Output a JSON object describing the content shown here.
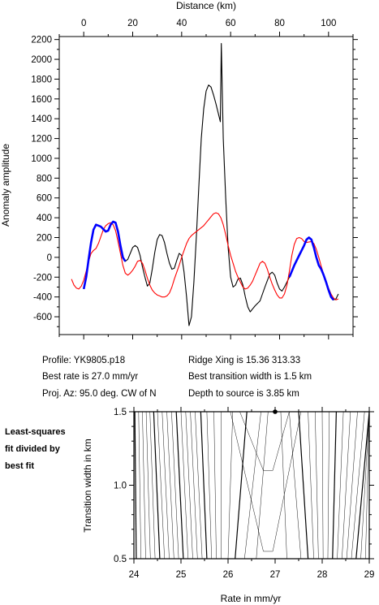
{
  "chart_data": [
    {
      "type": "line",
      "xlabel": "Distance (km)",
      "ylabel": "Anomaly amplitude",
      "xlim": [
        -10,
        110
      ],
      "ylim": [
        -780,
        2230
      ],
      "x_ticks": [
        0,
        20,
        40,
        60,
        80,
        100
      ],
      "y_ticks": [
        -600,
        -400,
        -200,
        0,
        200,
        400,
        600,
        800,
        1000,
        1200,
        1400,
        1600,
        1800,
        2000,
        2200
      ],
      "x_axis_position": "top",
      "grid": false,
      "series": [
        {
          "color": "#000000",
          "points": [
            [
              0,
              -320
            ],
            [
              1,
              -200
            ],
            [
              2,
              -20
            ],
            [
              3,
              150
            ],
            [
              4,
              280
            ],
            [
              5,
              330
            ],
            [
              7,
              310
            ],
            [
              9,
              260
            ],
            [
              10,
              270
            ],
            [
              11,
              330
            ],
            [
              12,
              360
            ],
            [
              13,
              350
            ],
            [
              14,
              260
            ],
            [
              15,
              120
            ],
            [
              16,
              0
            ],
            [
              17,
              -40
            ],
            [
              18,
              -20
            ],
            [
              19,
              40
            ],
            [
              20,
              100
            ],
            [
              21,
              120
            ],
            [
              22,
              100
            ],
            [
              23,
              20
            ],
            [
              24,
              -100
            ],
            [
              25,
              -200
            ],
            [
              26,
              -290
            ],
            [
              27,
              -260
            ],
            [
              28,
              -120
            ],
            [
              29,
              50
            ],
            [
              30,
              180
            ],
            [
              31,
              230
            ],
            [
              32,
              220
            ],
            [
              33,
              150
            ],
            [
              34,
              40
            ],
            [
              35,
              -60
            ],
            [
              36,
              -120
            ],
            [
              37,
              -110
            ],
            [
              38,
              -30
            ],
            [
              39,
              40
            ],
            [
              40,
              20
            ],
            [
              41,
              -150
            ],
            [
              42,
              -400
            ],
            [
              43,
              -690
            ],
            [
              44,
              -600
            ],
            [
              45,
              -250
            ],
            [
              46,
              200
            ],
            [
              47,
              700
            ],
            [
              48,
              1200
            ],
            [
              49,
              1500
            ],
            [
              50,
              1680
            ],
            [
              51,
              1740
            ],
            [
              52,
              1720
            ],
            [
              53,
              1640
            ],
            [
              54,
              1550
            ],
            [
              55,
              1450
            ],
            [
              55.8,
              1370
            ],
            [
              56.2,
              2160
            ],
            [
              57,
              1200
            ],
            [
              58,
              600
            ],
            [
              59,
              100
            ],
            [
              60,
              -200
            ],
            [
              61,
              -300
            ],
            [
              62,
              -280
            ],
            [
              63,
              -220
            ],
            [
              64,
              -210
            ],
            [
              65,
              -280
            ],
            [
              66,
              -400
            ],
            [
              67,
              -500
            ],
            [
              68,
              -550
            ],
            [
              69,
              -520
            ],
            [
              70,
              -490
            ],
            [
              72,
              -440
            ],
            [
              74,
              -300
            ],
            [
              76,
              -170
            ],
            [
              77,
              -150
            ],
            [
              78,
              -180
            ],
            [
              79,
              -260
            ],
            [
              80,
              -320
            ],
            [
              81,
              -340
            ],
            [
              82,
              -300
            ],
            [
              84,
              -200
            ],
            [
              86,
              -80
            ],
            [
              88,
              20
            ],
            [
              90,
              120
            ],
            [
              91,
              180
            ],
            [
              92,
              200
            ],
            [
              93,
              180
            ],
            [
              94,
              100
            ],
            [
              95,
              0
            ],
            [
              96,
              -80
            ],
            [
              97,
              -120
            ],
            [
              98,
              -180
            ],
            [
              99,
              -250
            ],
            [
              100,
              -330
            ],
            [
              101,
              -400
            ],
            [
              102,
              -430
            ],
            [
              103,
              -420
            ],
            [
              104,
              -370
            ]
          ]
        },
        {
          "color": "#ff0000",
          "points": [
            [
              -5,
              -220
            ],
            [
              -4,
              -280
            ],
            [
              -3,
              -310
            ],
            [
              -2,
              -320
            ],
            [
              -1,
              -290
            ],
            [
              0,
              -230
            ],
            [
              1,
              -140
            ],
            [
              2,
              -40
            ],
            [
              3,
              40
            ],
            [
              4,
              70
            ],
            [
              5,
              90
            ],
            [
              6,
              140
            ],
            [
              7,
              210
            ],
            [
              8,
              280
            ],
            [
              9,
              320
            ],
            [
              10,
              340
            ],
            [
              11,
              350
            ],
            [
              12,
              330
            ],
            [
              13,
              270
            ],
            [
              14,
              160
            ],
            [
              15,
              40
            ],
            [
              16,
              -80
            ],
            [
              17,
              -160
            ],
            [
              18,
              -180
            ],
            [
              19,
              -160
            ],
            [
              20,
              -130
            ],
            [
              21,
              -90
            ],
            [
              22,
              -40
            ],
            [
              23,
              -30
            ],
            [
              24,
              -60
            ],
            [
              25,
              -130
            ],
            [
              26,
              -210
            ],
            [
              27,
              -280
            ],
            [
              28,
              -330
            ],
            [
              29,
              -360
            ],
            [
              30,
              -380
            ],
            [
              31,
              -390
            ],
            [
              32,
              -400
            ],
            [
              33,
              -400
            ],
            [
              34,
              -390
            ],
            [
              35,
              -360
            ],
            [
              36,
              -300
            ],
            [
              37,
              -220
            ],
            [
              38,
              -150
            ],
            [
              39,
              -80
            ],
            [
              40,
              0
            ],
            [
              41,
              70
            ],
            [
              42,
              140
            ],
            [
              43,
              190
            ],
            [
              44,
              220
            ],
            [
              45,
              240
            ],
            [
              46,
              260
            ],
            [
              47,
              280
            ],
            [
              48,
              300
            ],
            [
              49,
              320
            ],
            [
              50,
              350
            ],
            [
              51,
              380
            ],
            [
              52,
              410
            ],
            [
              53,
              440
            ],
            [
              54,
              450
            ],
            [
              55,
              440
            ],
            [
              56,
              400
            ],
            [
              57,
              330
            ],
            [
              58,
              230
            ],
            [
              59,
              120
            ],
            [
              60,
              20
            ],
            [
              61,
              -60
            ],
            [
              62,
              -140
            ],
            [
              63,
              -200
            ],
            [
              64,
              -250
            ],
            [
              65,
              -300
            ],
            [
              66,
              -320
            ],
            [
              67,
              -310
            ],
            [
              68,
              -280
            ],
            [
              69,
              -240
            ],
            [
              70,
              -180
            ],
            [
              71,
              -120
            ],
            [
              72,
              -60
            ],
            [
              73,
              -40
            ],
            [
              74,
              -60
            ],
            [
              75,
              -120
            ],
            [
              76,
              -200
            ],
            [
              77,
              -270
            ],
            [
              78,
              -330
            ],
            [
              79,
              -380
            ],
            [
              80,
              -410
            ],
            [
              81,
              -410
            ],
            [
              82,
              -370
            ],
            [
              83,
              -280
            ],
            [
              84,
              -140
            ],
            [
              85,
              20
            ],
            [
              86,
              130
            ],
            [
              87,
              190
            ],
            [
              88,
              200
            ],
            [
              89,
              190
            ],
            [
              90,
              160
            ],
            [
              91,
              150
            ],
            [
              92,
              155
            ],
            [
              93,
              160
            ],
            [
              94,
              140
            ],
            [
              95,
              80
            ],
            [
              96,
              0
            ],
            [
              97,
              -90
            ],
            [
              98,
              -170
            ],
            [
              99,
              -240
            ],
            [
              100,
              -310
            ],
            [
              101,
              -370
            ],
            [
              102,
              -410
            ],
            [
              103,
              -430
            ],
            [
              104,
              -420
            ]
          ]
        },
        {
          "color": "#0000ff",
          "points": [
            [
              0,
              -320
            ],
            [
              1,
              -200
            ],
            [
              2,
              -20
            ],
            [
              3,
              150
            ],
            [
              4,
              280
            ],
            [
              5,
              330
            ],
            [
              7,
              310
            ],
            [
              9,
              260
            ],
            [
              10,
              270
            ],
            [
              11,
              330
            ],
            [
              12,
              360
            ],
            [
              13,
              350
            ],
            [
              14,
              260
            ],
            [
              15,
              120
            ],
            [
              16,
              0
            ],
            [
              17,
              -40
            ]
          ]
        },
        {
          "color": "#0000ff",
          "points": [
            [
              84,
              -200
            ],
            [
              86,
              -80
            ],
            [
              88,
              20
            ],
            [
              90,
              120
            ],
            [
              91,
              180
            ],
            [
              92,
              200
            ],
            [
              93,
              180
            ],
            [
              94,
              100
            ],
            [
              95,
              0
            ],
            [
              96,
              -80
            ],
            [
              97,
              -120
            ],
            [
              98,
              -180
            ],
            [
              99,
              -250
            ],
            [
              100,
              -330
            ],
            [
              101,
              -400
            ],
            [
              102,
              -430
            ]
          ]
        }
      ]
    },
    {
      "type": "contour",
      "xlabel": "Rate in mm/yr",
      "ylabel": "Transition width in km",
      "xlim": [
        24,
        29
      ],
      "ylim": [
        0.5,
        1.5
      ],
      "x_ticks": [
        24,
        25,
        26,
        27,
        28,
        29
      ],
      "y_ticks": [
        0.5,
        1.0,
        1.5
      ],
      "grid": false,
      "best_fit_point": [
        27.0,
        1.5
      ],
      "contour_bottom_x": [
        24.05,
        24.15,
        24.25,
        24.35,
        24.45,
        24.55,
        24.65,
        24.75,
        24.85,
        24.95,
        25.05,
        25.15,
        25.25,
        25.35,
        25.45,
        25.55,
        25.65,
        25.75,
        25.85,
        26.0,
        26.15,
        26.35,
        26.6,
        27.25,
        27.55,
        27.7,
        27.82,
        27.92,
        28.02,
        28.12,
        28.22,
        28.32,
        28.42,
        28.52,
        28.62,
        28.72,
        28.82,
        28.92
      ],
      "contour_top_x": [
        24.02,
        24.1,
        24.18,
        24.26,
        24.34,
        24.42,
        24.5,
        24.6,
        24.7,
        24.8,
        24.9,
        25.0,
        25.1,
        25.2,
        25.3,
        25.42,
        25.55,
        25.7,
        25.85,
        26.1,
        26.4,
        26.7,
        26.85,
        27.12,
        27.3,
        27.5,
        27.7,
        27.85,
        28.0,
        28.15,
        28.3,
        28.45,
        28.6,
        28.75,
        28.9,
        29.0,
        29.0,
        29.0
      ],
      "contour_bold_every": 5,
      "contour_v_shapes": [
        {
          "left": 26.25,
          "bottom": 1.1,
          "tip_x": 26.85,
          "right": 27.3
        },
        {
          "left": 26.05,
          "bottom": 0.55,
          "tip_x": 26.85,
          "right": 27.55
        }
      ]
    }
  ],
  "info": {
    "profile": "Profile: YK9805.p18",
    "ridge": "Ridge Xing is 15.36 313.33",
    "rate": "Best rate is 27.0 mm/yr",
    "transition": "Best transition width is 1.5 km",
    "azimuth": "Proj. Az: 95.0 deg. CW of N",
    "depth": "Depth to source is   3.85 km"
  },
  "note": {
    "line1": "Least-squares",
    "line2": "fit divided by",
    "line3": "best fit"
  }
}
